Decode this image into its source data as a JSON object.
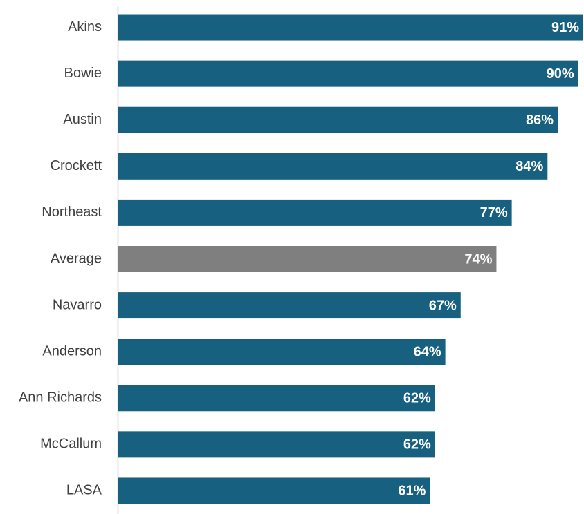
{
  "chart_data": {
    "type": "barh",
    "categories": [
      "Akins",
      "Bowie",
      "Austin",
      "Crockett",
      "Northeast",
      "Average",
      "Navarro",
      "Anderson",
      "Ann Richards",
      "McCallum",
      "LASA"
    ],
    "values": [
      91,
      90,
      86,
      84,
      77,
      74,
      67,
      64,
      62,
      62,
      61
    ],
    "value_labels": [
      "91%",
      "90%",
      "86%",
      "84%",
      "77%",
      "74%",
      "67%",
      "64%",
      "62%",
      "62%",
      "61%"
    ],
    "colors": [
      "#17607f",
      "#17607f",
      "#17607f",
      "#17607f",
      "#17607f",
      "#7f7f7f",
      "#17607f",
      "#17607f",
      "#17607f",
      "#17607f",
      "#17607f"
    ],
    "xlim": [
      0,
      91
    ]
  }
}
